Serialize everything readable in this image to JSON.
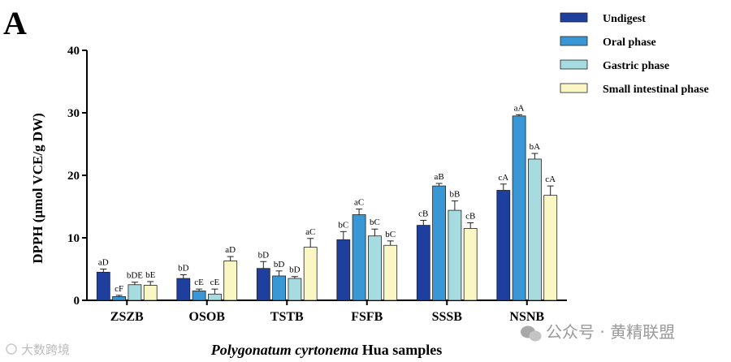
{
  "panel_letter": "A",
  "chart_data": {
    "type": "bar",
    "ylabel": "DPPH (μmol VCE/g DW)",
    "xlabel_italic": "Polygonatum cyrtonema",
    "xlabel_rest": " Hua samples",
    "ylim": [
      0,
      40
    ],
    "yticks": [
      0,
      10,
      20,
      30,
      40
    ],
    "categories": [
      "ZSZB",
      "OSOB",
      "TSTB",
      "FSFB",
      "SSSB",
      "NSNB"
    ],
    "grid": false,
    "legend_position": "top-right",
    "series": [
      {
        "name": "Undigest",
        "color": "#1f3f9e",
        "values": [
          4.5,
          3.5,
          5.1,
          9.7,
          12.0,
          17.6
        ],
        "errors": [
          0.5,
          0.6,
          1.1,
          1.3,
          0.8,
          1.0
        ],
        "labels": [
          "aD",
          "bD",
          "bD",
          "bC",
          "cB",
          "cA"
        ]
      },
      {
        "name": "Oral phase",
        "color": "#3a97d6",
        "values": [
          0.6,
          1.5,
          3.9,
          13.7,
          18.3,
          29.5
        ],
        "errors": [
          0.2,
          0.3,
          0.8,
          0.9,
          0.4,
          0.2
        ],
        "labels": [
          "cF",
          "cE",
          "bD",
          "aC",
          "aB",
          "aA"
        ]
      },
      {
        "name": "Gastric phase",
        "color": "#a6dcdf",
        "values": [
          2.5,
          1.0,
          3.5,
          10.3,
          14.4,
          22.6
        ],
        "errors": [
          0.4,
          0.8,
          0.3,
          1.1,
          1.5,
          0.9
        ],
        "labels": [
          "bDE",
          "cE",
          "bD",
          "bC",
          "bB",
          "bA"
        ]
      },
      {
        "name": "Small intestinal phase",
        "color": "#faf7c5",
        "values": [
          2.4,
          6.3,
          8.5,
          8.8,
          11.5,
          16.8
        ],
        "errors": [
          0.6,
          0.7,
          1.4,
          0.7,
          0.9,
          1.5
        ],
        "labels": [
          "bE",
          "aD",
          "aC",
          "bC",
          "cB",
          "cA"
        ]
      }
    ]
  },
  "watermark": {
    "left": "大数跨境",
    "right": "公众号 · 黄精联盟"
  }
}
